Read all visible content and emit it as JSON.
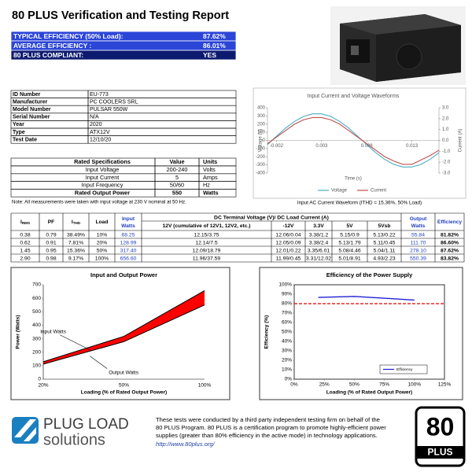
{
  "header": {
    "title": "80 PLUS Verification and Testing Report"
  },
  "summary": [
    {
      "label": "TYPICAL EFFICIENCY (50% Load):",
      "value": "87.62%"
    },
    {
      "label": "AVERAGE EFFICIENCY :",
      "value": "86.01%"
    },
    {
      "label": "80 PLUS COMPLIANT:",
      "value": "YES"
    }
  ],
  "info_table": [
    [
      "ID Number",
      "EU-773"
    ],
    [
      "Manufacturer",
      "PC COOLERS SRL"
    ],
    [
      "Model Number",
      "PULSAR 550W"
    ],
    [
      "Serial Number",
      "N/A"
    ],
    [
      "Year",
      "2020"
    ],
    [
      "Type",
      "ATX12V"
    ],
    [
      "Test Date",
      "12/10/20"
    ]
  ],
  "rated_specs": {
    "headers": [
      "Rated Specifications",
      "Value",
      "Units"
    ],
    "rows": [
      [
        "Input Voltage",
        "200-240",
        "Volts"
      ],
      [
        "Input Current",
        "5",
        "Amps"
      ],
      [
        "Input Frequency",
        "50/60",
        "Hz"
      ],
      [
        "Rated Output Power",
        "550",
        "Watts"
      ]
    ],
    "note": "Note: All measurements were taken with input voltage at 230 V nominal at 50 Hz."
  },
  "test_table": {
    "group_header": "DC Terminal Voltage (V)/ DC Load Current (A)",
    "headers": [
      {
        "main": "I",
        "sub": "RMS"
      },
      "PF",
      {
        "main": "I",
        "sub": "THD"
      },
      "Load",
      [
        "Input",
        "Watts"
      ],
      "12V (cumulative of 12V1, 12V2, etc.)",
      "-12V",
      "3.3V",
      "5V",
      "5Vsb",
      [
        "Output",
        "Watts"
      ],
      "Efficiency"
    ],
    "rows": [
      [
        "0.38",
        "0.79",
        "38.49%",
        "10%",
        "68.25",
        "12.15/3.75",
        "12.06/0.04",
        "3.38/1.2",
        "5.15/0.9",
        "5.13/0.22",
        "55.84",
        "81.82%"
      ],
      [
        "0.62",
        "0.91",
        "7.81%",
        "20%",
        "128.99",
        "12.14/7.5",
        "12.05/0.09",
        "3.38/2.4",
        "5.13/1.79",
        "5.11/0.45",
        "111.70",
        "86.60%"
      ],
      [
        "1.45",
        "0.95",
        "15.36%",
        "50%",
        "317.40",
        "12.09/18.79",
        "12.01/0.22",
        "3.35/6.01",
        "5.08/4.46",
        "5.04/1.11",
        "278.10",
        "87.62%"
      ],
      [
        "2.90",
        "0.98",
        "9.17%",
        "100%",
        "656.60",
        "11.96/37.59",
        "11.99/0.45",
        "3.31/12.02",
        "5.01/8.91",
        "4.93/2.23",
        "550.39",
        "83.82%"
      ]
    ]
  },
  "chart_data": [
    {
      "type": "line",
      "title": "Input Current and Voltage Waveforms",
      "caption": "Input AC Current Waveform (ITHD = 15.36%, 50% Load)",
      "x_label": "Time (s)",
      "y_label": "Voltage (V)",
      "y2_label": "Current (A)",
      "x": [
        -0.003,
        -0.002,
        -0.001,
        0,
        0.001,
        0.002,
        0.003,
        0.004,
        0.005,
        0.006,
        0.007,
        0.008,
        0.009,
        0.01,
        0.011,
        0.012,
        0.013,
        0.014,
        0.015,
        0.016
      ],
      "xlim": [
        -0.003,
        0.016
      ],
      "xticks": [
        -0.002,
        0.003,
        0.008,
        0.013
      ],
      "ylim": [
        -400,
        400
      ],
      "yticks": [
        400,
        300,
        200,
        100,
        0,
        -100,
        -200,
        -300,
        -400
      ],
      "y2lim": [
        -3,
        3
      ],
      "y2ticks": [
        {
          "value": 3,
          "label": "3.0"
        },
        {
          "value": 2,
          "label": "2.0"
        },
        {
          "value": 1,
          "label": "1.0"
        },
        {
          "value": 0,
          "label": "0.0"
        },
        {
          "value": -1,
          "label": "-1.0"
        },
        {
          "value": -2,
          "label": "-2.0"
        },
        {
          "value": -3,
          "label": "-3.0"
        }
      ],
      "series": [
        {
          "name": "Voltage",
          "color": "#4bacc6",
          "values": [
            -51,
            51,
            150,
            233,
            294,
            326,
            326,
            294,
            233,
            150,
            51,
            -51,
            -150,
            -233,
            -294,
            -326,
            -326,
            -294,
            -233,
            -150
          ]
        },
        {
          "name": "Current",
          "color": "#c0504d",
          "axis": "y2",
          "values": [
            -0.3,
            0.3,
            0.9,
            1.5,
            1.9,
            2.1,
            2.1,
            1.9,
            1.5,
            0.9,
            0.3,
            -0.3,
            -0.9,
            -1.5,
            -1.9,
            -2.2,
            -2.2,
            -1.8,
            -1.4,
            -0.9
          ]
        }
      ],
      "legend": "bottom",
      "grid": false
    },
    {
      "type": "area",
      "title": "Input and Output Power",
      "x_label": "Loading (% of Rated Output Power)",
      "y_label": "Power (Watts)",
      "categories": [
        "20%",
        "50%",
        "100%"
      ],
      "ylim": [
        0,
        700
      ],
      "yticks": [
        0,
        100,
        200,
        300,
        400,
        500,
        600,
        700
      ],
      "series": [
        {
          "name": "Input Watts",
          "color": "#000000",
          "values": [
            128.99,
            317.4,
            656.6
          ]
        },
        {
          "name": "Output Watts",
          "color": "#000000",
          "values": [
            111.7,
            278.1,
            550.39
          ]
        }
      ],
      "fill_color": "#ff0000",
      "grid": false
    },
    {
      "type": "line",
      "title": "Efficiency of the Power Supply",
      "x_label": "Loading (% of Rated Output Power)",
      "y_label": "Efficiency (%)",
      "x": [
        20,
        50,
        100
      ],
      "xlim": [
        0,
        125
      ],
      "xticks": [
        {
          "value": 0,
          "label": "0%"
        },
        {
          "value": 25,
          "label": "25%"
        },
        {
          "value": 50,
          "label": "50%"
        },
        {
          "value": 75,
          "label": "75%"
        },
        {
          "value": 100,
          "label": "100%"
        },
        {
          "value": 125,
          "label": "125%"
        }
      ],
      "ylim": [
        0,
        100
      ],
      "yticks": [
        {
          "value": 0,
          "label": "0%"
        },
        {
          "value": 10,
          "label": "10%"
        },
        {
          "value": 20,
          "label": "20%"
        },
        {
          "value": 30,
          "label": "30%"
        },
        {
          "value": 40,
          "label": "40%"
        },
        {
          "value": 50,
          "label": "50%"
        },
        {
          "value": 60,
          "label": "60%"
        },
        {
          "value": 70,
          "label": "70%"
        },
        {
          "value": 80,
          "label": "80%"
        },
        {
          "value": 90,
          "label": "90%"
        },
        {
          "value": 100,
          "label": "100%"
        }
      ],
      "series": [
        {
          "name": "Efficiency",
          "color": "#2020d0",
          "values": [
            86.6,
            87.62,
            83.82
          ]
        }
      ],
      "reference_line": {
        "value": 80,
        "color": "#e00000",
        "style": "dashed"
      },
      "legend": "lower right",
      "grid": false
    }
  ],
  "footer": {
    "logo_top": "PLUG LOAD",
    "logo_bottom": "solutions",
    "text_lines": [
      "These tests were conducted by a third party independent testing firm on behalf of the",
      "80 PLUS Program. 80 PLUS is a certification program to promote highly-efficient power",
      "supplies (greater than 80% efficiency in the active mode) in technology applications."
    ],
    "url": "http://www.80plus.org/",
    "badge_number": "80",
    "badge_text": "PLUS"
  }
}
